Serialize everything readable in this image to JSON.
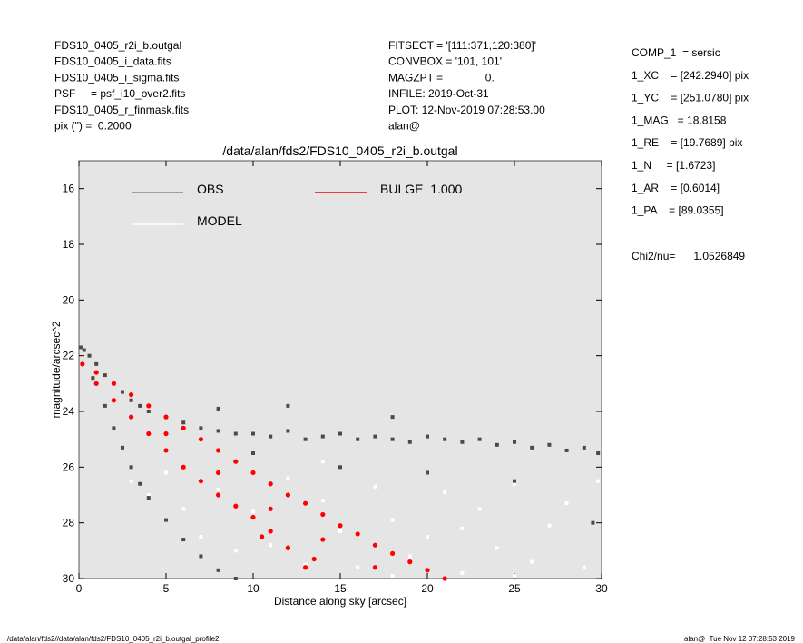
{
  "header": {
    "left": [
      "FDS10_0405_r2i_b.outgal",
      "FDS10_0405_i_data.fits",
      "FDS10_0405_i_sigma.fits",
      "PSF     = psf_i10_over2.fits",
      "FDS10_0405_r_finmask.fits",
      "pix (\") =  0.2000"
    ],
    "middle": [
      "FITSECT = '[111:371,120:380]'",
      "CONVBOX = '101, 101'",
      "MAGZPT =              0.",
      "INFILE: 2019-Oct-31",
      "PLOT: 12-Nov-2019 07:28:53.00",
      "alan@"
    ],
    "right": [
      "COMP_1  = sersic",
      "1_XC    = [242.2940] pix",
      "1_YC    = [251.0780] pix",
      "1_MAG   = 18.8158",
      "1_RE    = [19.7689] pix",
      "1_N     = [1.6723]",
      "1_AR    = [0.6014]",
      "1_PA    = [89.0355]"
    ],
    "chi2": "Chi2/nu=      1.0526849"
  },
  "footer": {
    "left": "/data/alan/fds2//data/alan/fds2/FDS10_0405_r2i_b.outgal_profile2",
    "right": "alan@  Tue Nov 12 07:28:53 2019"
  },
  "chart_data": {
    "type": "scatter",
    "title": "/data/alan/fds2/FDS10_0405_r2i_b.outgal",
    "xlabel": "Distance along sky [arcsec]",
    "ylabel": "magnitude/arcsec^2",
    "xlim": [
      0,
      30
    ],
    "ylim": [
      30,
      15
    ],
    "xticks": [
      0,
      5,
      10,
      15,
      20,
      25,
      30
    ],
    "yticks": [
      16,
      18,
      20,
      22,
      24,
      26,
      28,
      30
    ],
    "series": [
      {
        "name": "MODEL",
        "color": "#ffffff",
        "x": [
          3,
          4,
          5,
          6,
          7,
          8,
          9,
          10,
          11,
          12,
          13,
          14,
          15,
          16,
          17,
          18,
          19,
          20,
          21,
          22,
          23,
          24,
          25,
          26,
          27,
          28,
          29,
          29.8,
          22,
          25,
          18,
          14
        ],
        "values": [
          26.5,
          27,
          26.2,
          27.5,
          28.5,
          26.8,
          29,
          27.6,
          28.8,
          26.4,
          29.5,
          27.2,
          28.3,
          29.6,
          26.7,
          27.9,
          29.2,
          28.5,
          26.9,
          29.8,
          27.5,
          28.9,
          26.6,
          29.4,
          28.1,
          27.3,
          29.6,
          26.5,
          28.2,
          29.9,
          29.9,
          25.8
        ]
      },
      {
        "name": "OBS",
        "color": "#4a4a4a",
        "x": [
          0.1,
          0.3,
          0.6,
          1,
          1.5,
          2,
          2.5,
          3,
          3.5,
          4,
          5,
          6,
          7,
          8,
          9,
          10,
          11,
          12,
          13,
          14,
          15,
          16,
          17,
          18,
          19,
          20,
          21,
          22,
          23,
          24,
          25,
          26,
          27,
          28,
          29,
          29.8,
          0.8,
          1.5,
          2,
          2.5,
          3,
          3.5,
          4,
          5,
          6,
          7,
          8,
          9,
          10,
          15,
          20,
          25,
          12,
          8,
          18,
          29.5
        ],
        "values": [
          21.7,
          21.8,
          22,
          22.3,
          22.7,
          23,
          23.3,
          23.6,
          23.8,
          24,
          24.2,
          24.4,
          24.6,
          24.7,
          24.8,
          24.8,
          24.9,
          24.7,
          25,
          24.9,
          24.8,
          25,
          24.9,
          25,
          25.1,
          24.9,
          25,
          25.1,
          25,
          25.2,
          25.1,
          25.3,
          25.2,
          25.4,
          25.3,
          25.5,
          22.8,
          23.8,
          24.6,
          25.3,
          26,
          26.6,
          27.1,
          27.9,
          28.6,
          29.2,
          29.7,
          30,
          25.5,
          26,
          26.2,
          26.5,
          23.8,
          23.9,
          24.2,
          28
        ]
      },
      {
        "name": "BULGE  1.000",
        "color": "#ff0000",
        "x": [
          0.2,
          1,
          1,
          2,
          2,
          3,
          3,
          4,
          4,
          5,
          5,
          6,
          6,
          7,
          7,
          8,
          8,
          9,
          9,
          10,
          10,
          11,
          11,
          12,
          12,
          13,
          13,
          14,
          15,
          16,
          17,
          18,
          19,
          20,
          21,
          5,
          8,
          11,
          14,
          17,
          10.5,
          12,
          13.5
        ],
        "values": [
          22.3,
          22.6,
          23,
          23,
          23.6,
          23.4,
          24.2,
          23.8,
          24.8,
          24.2,
          25.4,
          24.6,
          26,
          25,
          26.5,
          25.4,
          27,
          25.8,
          27.4,
          26.2,
          27.8,
          26.6,
          28.3,
          27,
          28.9,
          27.3,
          29.6,
          27.7,
          28.1,
          28.4,
          28.8,
          29.1,
          29.4,
          29.7,
          30,
          24.8,
          26.2,
          27.5,
          28.6,
          29.6,
          28.5,
          28.9,
          29.3
        ]
      }
    ]
  }
}
